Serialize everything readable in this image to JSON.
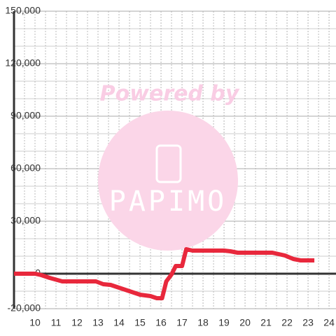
{
  "chart_data": {
    "type": "line",
    "watermark": {
      "text": "Powered by",
      "logo": "PAPIMO"
    },
    "x": [
      9.0,
      10.0,
      10.3,
      10.7,
      11.3,
      12.9,
      13.25,
      13.6,
      14.0,
      14.5,
      15.0,
      15.5,
      15.8,
      16.05,
      16.25,
      16.5,
      16.7,
      17.0,
      17.2,
      17.5,
      19.0,
      19.3,
      19.65,
      21.3,
      21.6,
      21.9,
      22.3,
      22.65,
      23.3
    ],
    "series": [
      {
        "color": "#e8283c",
        "values": [
          0,
          0,
          -800,
          -2400,
          -4400,
          -4400,
          -6000,
          -6400,
          -8000,
          -10000,
          -12000,
          -12800,
          -14000,
          -14000,
          -4400,
          -400,
          4400,
          4400,
          14000,
          13200,
          13200,
          12800,
          12000,
          12000,
          11200,
          10400,
          8400,
          7600,
          7600
        ]
      }
    ],
    "xlim": [
      9,
      24.33
    ],
    "xticks": [
      10,
      11,
      12,
      13,
      14,
      15,
      16,
      17,
      18,
      19,
      20,
      21,
      22,
      23,
      24
    ],
    "ylim": [
      -20000,
      150000
    ],
    "yticks": [
      {
        "value": -20000,
        "label": "-20,000"
      },
      0,
      {
        "value": 30000,
        "label": "30,000"
      },
      {
        "value": 60000,
        "label": "60,000"
      },
      {
        "value": 90000,
        "label": "90,000"
      },
      {
        "value": 120000,
        "label": "120,000"
      },
      {
        "value": 150000,
        "label": "150,000"
      }
    ],
    "grid": true
  }
}
